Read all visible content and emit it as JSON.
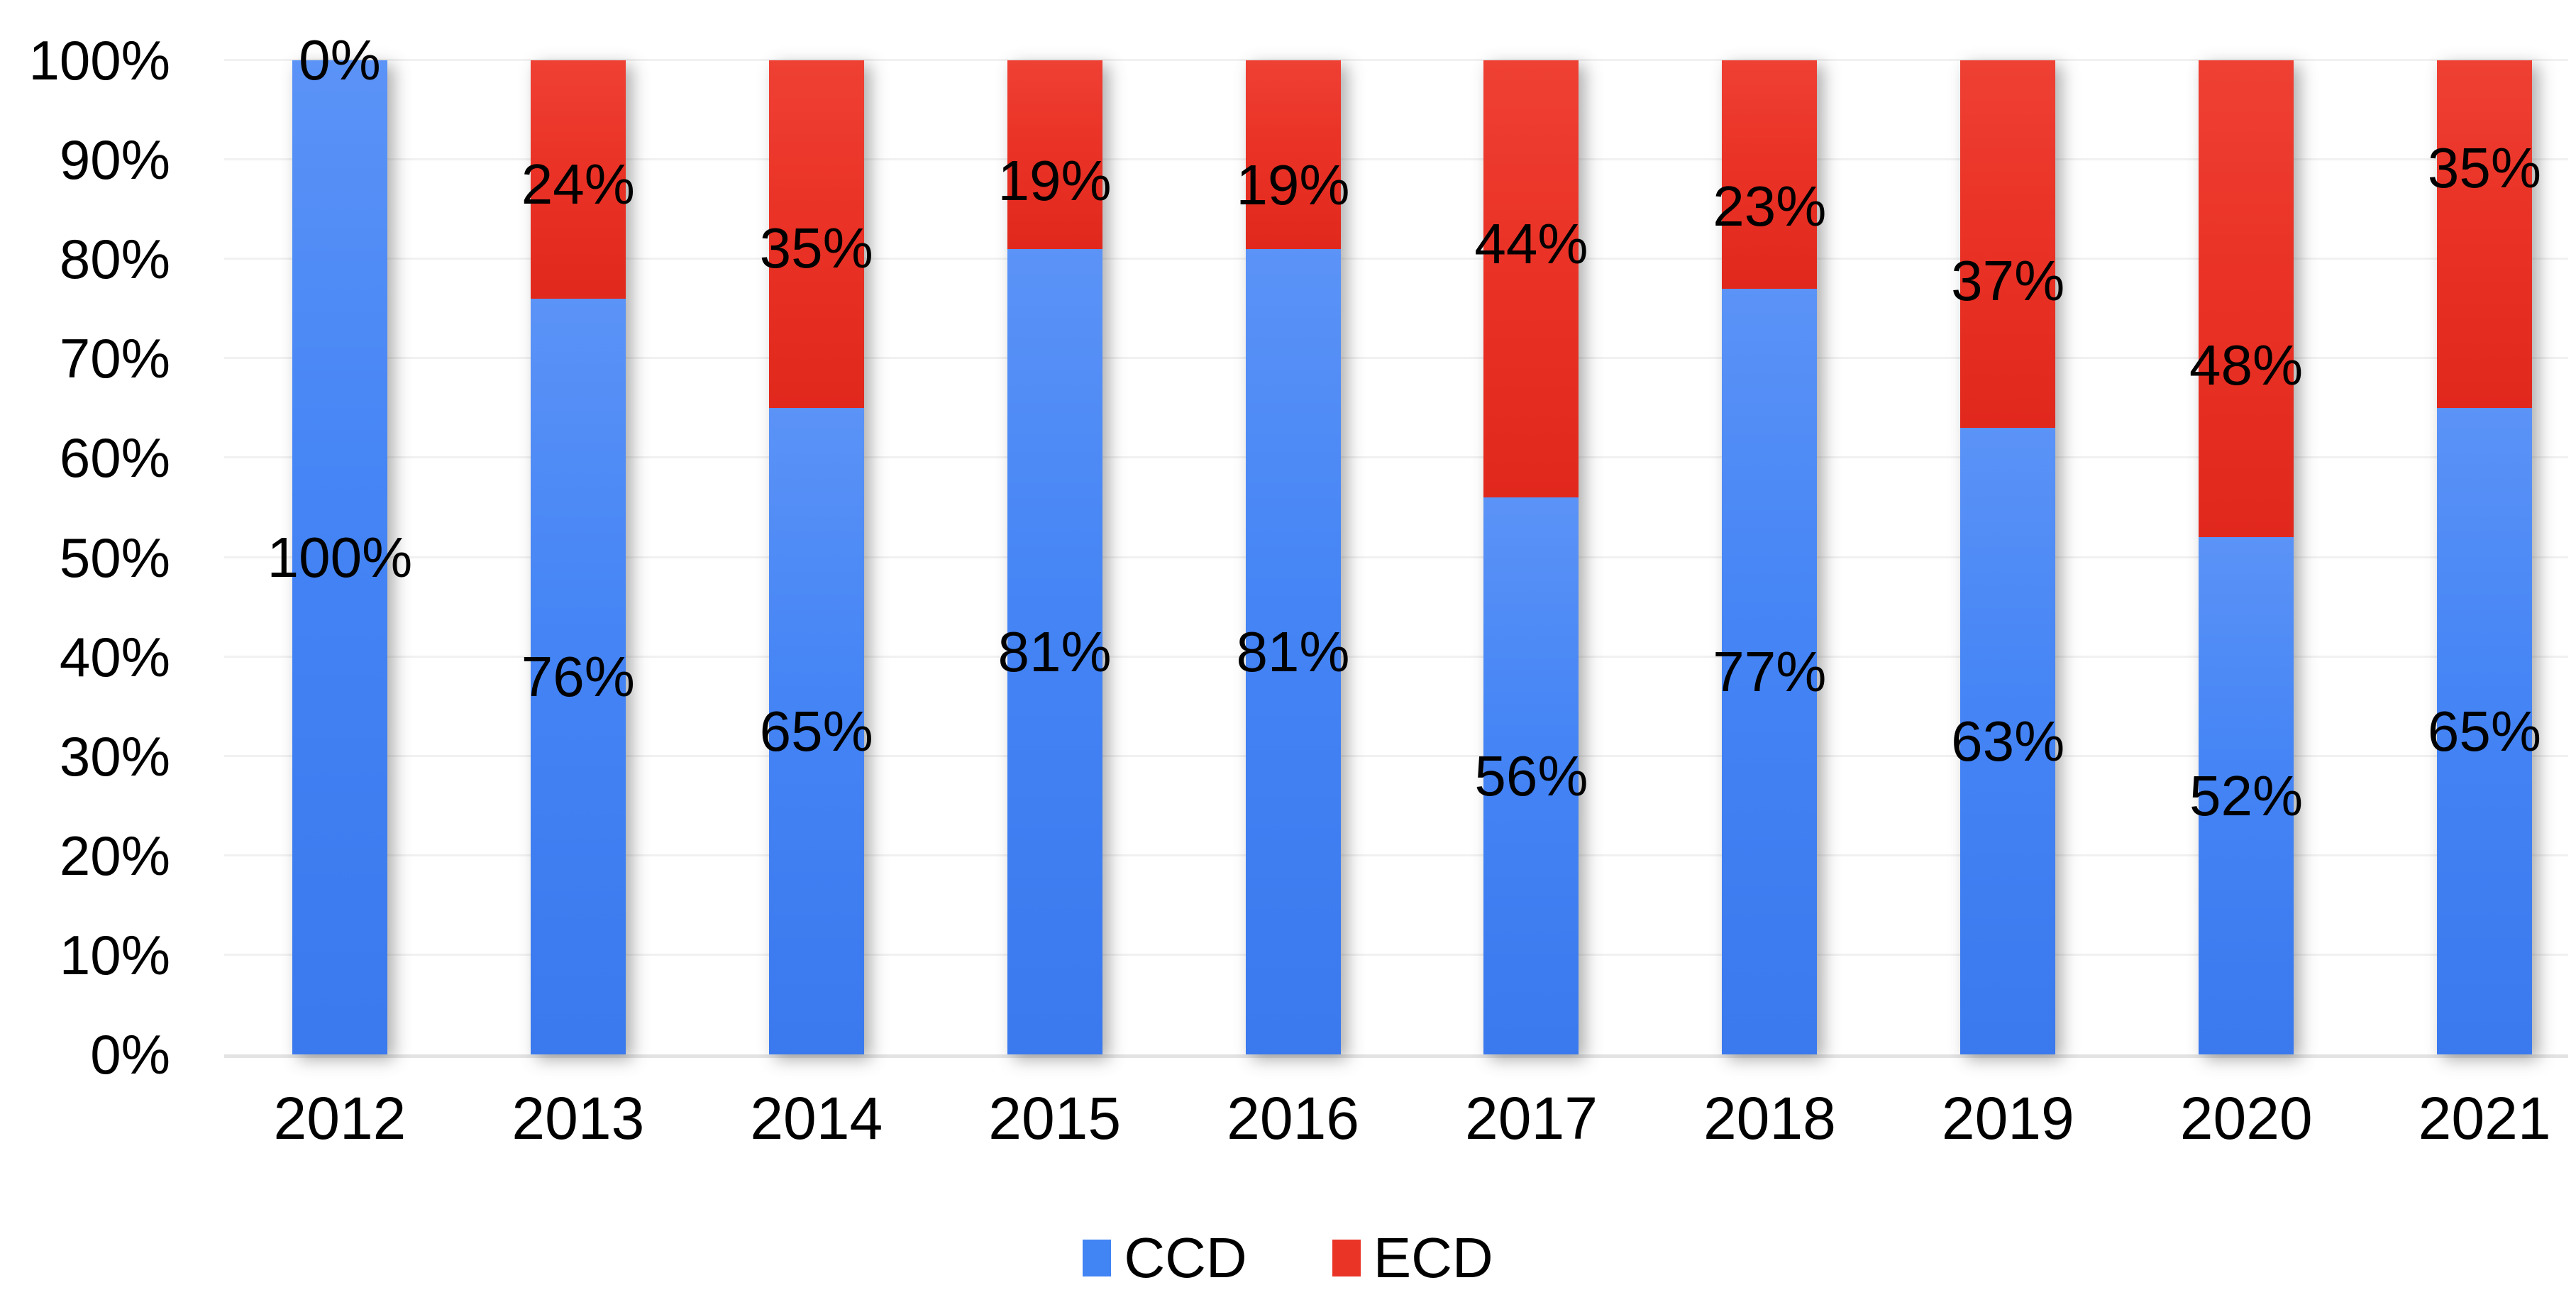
{
  "chart_data": {
    "type": "bar",
    "variant": "stacked-100-percent-column",
    "title": "",
    "categories": [
      "2012",
      "2013",
      "2014",
      "2015",
      "2016",
      "2017",
      "2018",
      "2019",
      "2020",
      "2021"
    ],
    "series": [
      {
        "name": "CCD",
        "color": "#4184f4",
        "values": [
          100,
          76,
          65,
          81,
          81,
          56,
          77,
          63,
          52,
          65
        ],
        "labels": [
          "100%",
          "76%",
          "65%",
          "81%",
          "81%",
          "56%",
          "77%",
          "63%",
          "52%",
          "65%"
        ]
      },
      {
        "name": "ECD",
        "color": "#ea3425",
        "values": [
          0,
          24,
          35,
          19,
          19,
          44,
          23,
          37,
          48,
          35
        ],
        "labels": [
          "0%",
          "24%",
          "35%",
          "19%",
          "19%",
          "44%",
          "23%",
          "37%",
          "48%",
          "35%"
        ]
      }
    ],
    "y_axis": {
      "min": 0,
      "max": 100,
      "ticks": [
        "0%",
        "10%",
        "20%",
        "30%",
        "40%",
        "50%",
        "60%",
        "70%",
        "80%",
        "90%",
        "100%"
      ],
      "grid": true
    },
    "legend": {
      "position": "bottom",
      "items": [
        {
          "label": "CCD",
          "color": "#4184f4"
        },
        {
          "label": "ECD",
          "color": "#ea3425"
        }
      ]
    }
  }
}
